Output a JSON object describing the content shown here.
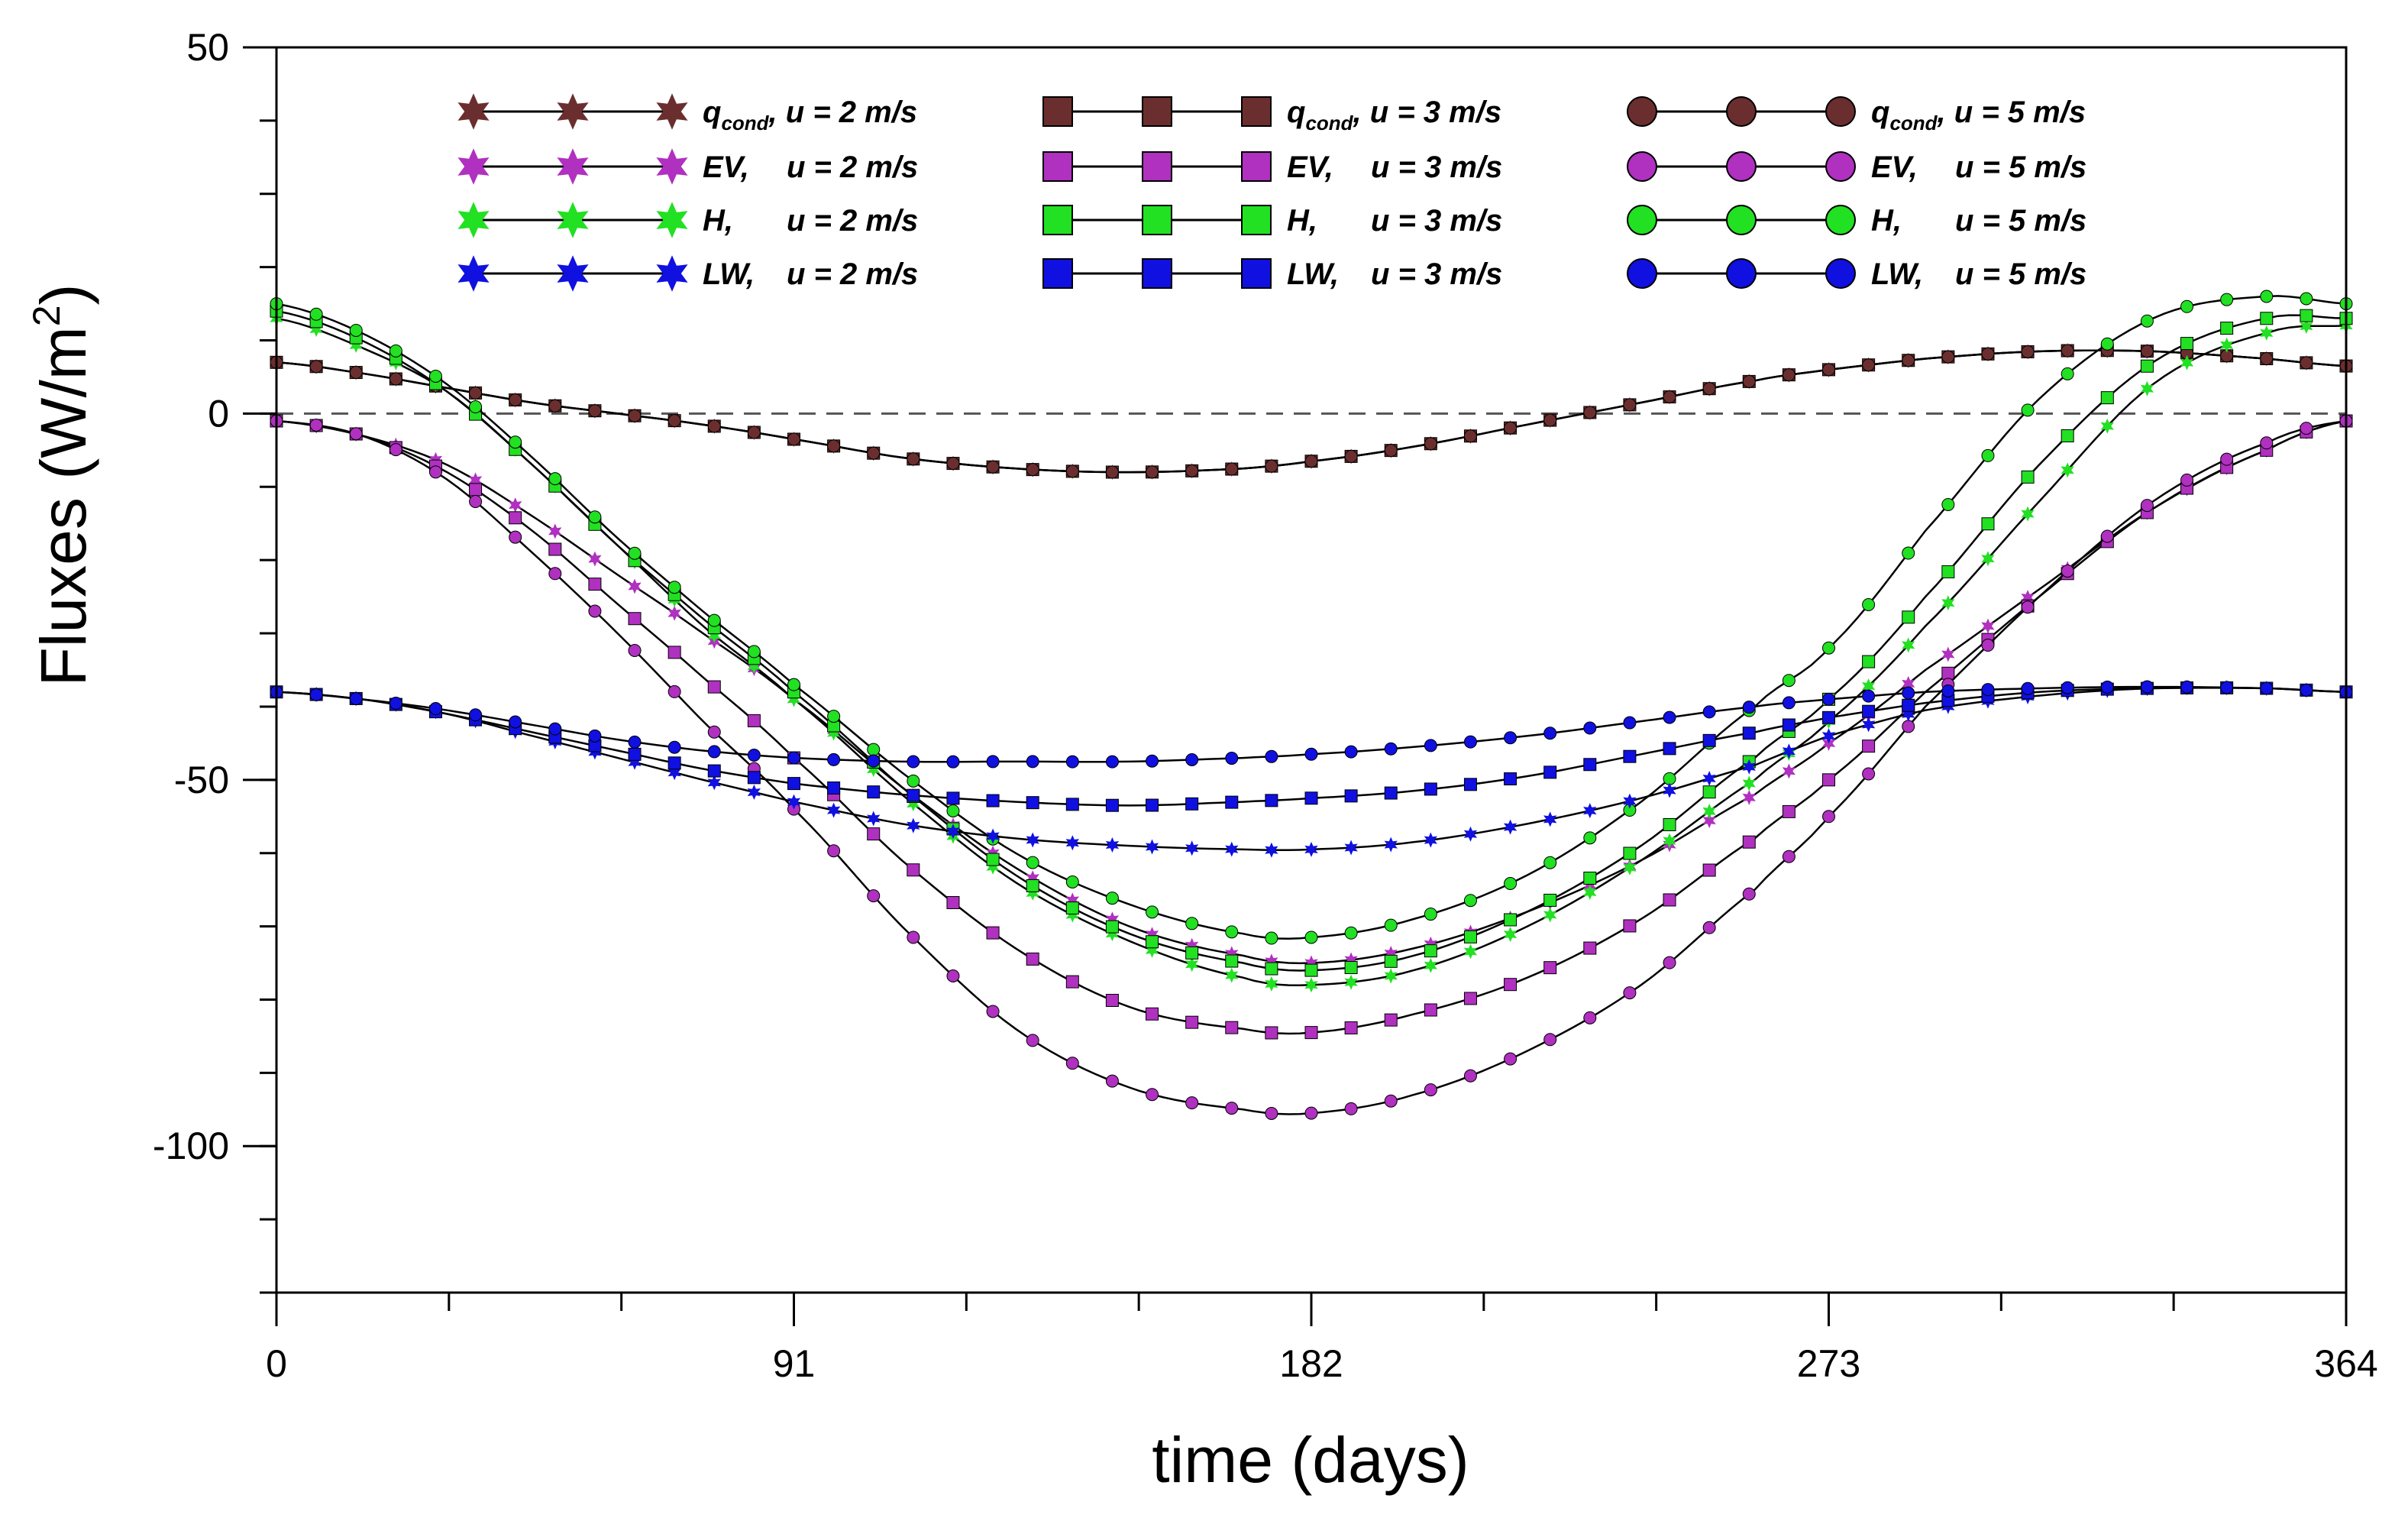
{
  "chart_data": {
    "type": "line",
    "xlabel": "time (days)",
    "ylabel": "Fluxes (W/m",
    "ylabel_sup": "2",
    "ylabel_close": ")",
    "xlim": [
      0,
      364
    ],
    "ylim": [
      -120,
      50
    ],
    "xticks": [
      0,
      91,
      182,
      273,
      364
    ],
    "xtick_labels": [
      "0",
      "91",
      "182",
      "273",
      "364"
    ],
    "x_minor_step": 30.333,
    "yticks": [
      50,
      0,
      -50,
      -100
    ],
    "ytick_labels": [
      "50",
      "0",
      "-50",
      "-100"
    ],
    "y_minor_step": 10,
    "zero_line": "dashed",
    "marker_spacing_days": 7,
    "legend_position": "top",
    "legend": [
      {
        "series": "qcond_u2",
        "text": "q",
        "sub": "cond",
        "rest": ", u = 2 m/s"
      },
      {
        "series": "qcond_u3",
        "text": "q",
        "sub": "cond",
        "rest": ", u = 3 m/s"
      },
      {
        "series": "qcond_u5",
        "text": "q",
        "sub": "cond",
        "rest": ", u = 5 m/s"
      },
      {
        "series": "EV_u2",
        "text": "EV,",
        "sub": "",
        "rest": "u = 2 m/s"
      },
      {
        "series": "EV_u3",
        "text": "EV,",
        "sub": "",
        "rest": "u = 3 m/s"
      },
      {
        "series": "EV_u5",
        "text": "EV,",
        "sub": "",
        "rest": "u = 5 m/s"
      },
      {
        "series": "H_u2",
        "text": "H,",
        "sub": "",
        "rest": "u = 2 m/s"
      },
      {
        "series": "H_u3",
        "text": "H,",
        "sub": "",
        "rest": "u = 3 m/s"
      },
      {
        "series": "H_u5",
        "text": "H,",
        "sub": "",
        "rest": "u = 5 m/s"
      },
      {
        "series": "LW_u2",
        "text": "LW,",
        "sub": "",
        "rest": "u = 2 m/s"
      },
      {
        "series": "LW_u3",
        "text": "LW,",
        "sub": "",
        "rest": "u = 3 m/s"
      },
      {
        "series": "LW_u5",
        "text": "LW,",
        "sub": "",
        "rest": "u = 5 m/s"
      }
    ],
    "series": [
      {
        "id": "qcond_u2",
        "name": "qcond, u = 2 m/s",
        "color": "#6b2e2e",
        "marker": "star",
        "x": [
          0,
          15,
          30,
          45,
          60,
          75,
          91,
          110,
          130,
          150,
          170,
          182,
          200,
          220,
          240,
          260,
          273,
          290,
          310,
          330,
          350,
          364
        ],
        "y": [
          7,
          5.5,
          3.5,
          1.5,
          0,
          -1.5,
          -3.5,
          -6,
          -7.5,
          -8,
          -7.5,
          -6.5,
          -4.5,
          -1.5,
          1.5,
          4.5,
          6,
          7.5,
          8.5,
          8.5,
          7.5,
          6.5
        ]
      },
      {
        "id": "qcond_u3",
        "name": "qcond, u = 3 m/s",
        "color": "#6b2e2e",
        "marker": "square",
        "x": [
          0,
          15,
          30,
          45,
          60,
          75,
          91,
          110,
          130,
          150,
          170,
          182,
          200,
          220,
          240,
          260,
          273,
          290,
          310,
          330,
          350,
          364
        ],
        "y": [
          7,
          5.5,
          3.5,
          1.5,
          0,
          -1.5,
          -3.5,
          -6,
          -7.5,
          -8,
          -7.5,
          -6.5,
          -4.5,
          -1.5,
          1.5,
          4.5,
          6,
          7.5,
          8.5,
          8.5,
          7.5,
          6.5
        ]
      },
      {
        "id": "qcond_u5",
        "name": "qcond, u = 5 m/s",
        "color": "#6b2e2e",
        "marker": "circle",
        "x": [
          0,
          15,
          30,
          45,
          60,
          75,
          91,
          110,
          130,
          150,
          170,
          182,
          200,
          220,
          240,
          260,
          273,
          290,
          310,
          330,
          350,
          364
        ],
        "y": [
          7,
          5.5,
          3.5,
          1.5,
          0,
          -1.5,
          -3.5,
          -6,
          -7.5,
          -8,
          -7.5,
          -6.5,
          -4.5,
          -1.5,
          1.5,
          4.5,
          6,
          7.5,
          8.5,
          8.5,
          7.5,
          6.5
        ]
      },
      {
        "id": "EV_u2",
        "name": "EV, u = 2 m/s",
        "color": "#b030c0",
        "marker": "star",
        "x": [
          0,
          15,
          30,
          45,
          60,
          75,
          91,
          110,
          130,
          150,
          170,
          182,
          200,
          220,
          240,
          260,
          273,
          290,
          310,
          330,
          350,
          364
        ],
        "y": [
          -1,
          -3,
          -7,
          -14,
          -22,
          -30,
          -39,
          -51,
          -62,
          -70,
          -74,
          -75,
          -73,
          -68,
          -61,
          -52,
          -45,
          -35,
          -24,
          -13,
          -5,
          -1
        ]
      },
      {
        "id": "EV_u3",
        "name": "EV, u = 3 m/s",
        "color": "#b030c0",
        "marker": "square",
        "x": [
          0,
          15,
          30,
          45,
          60,
          75,
          91,
          110,
          130,
          150,
          170,
          182,
          200,
          220,
          240,
          260,
          273,
          290,
          310,
          330,
          350,
          364
        ],
        "y": [
          -1,
          -3,
          -8,
          -16,
          -26,
          -36,
          -47,
          -61,
          -73,
          -81,
          -84,
          -84.5,
          -82,
          -77,
          -69,
          -58,
          -50,
          -38,
          -25,
          -13,
          -5,
          -1
        ]
      },
      {
        "id": "EV_u5",
        "name": "EV, u = 5 m/s",
        "color": "#b030c0",
        "marker": "circle",
        "x": [
          0,
          15,
          30,
          45,
          60,
          75,
          91,
          110,
          130,
          150,
          170,
          182,
          200,
          220,
          240,
          260,
          273,
          290,
          310,
          330,
          350,
          364
        ],
        "y": [
          -1,
          -3,
          -9,
          -19,
          -30,
          -42,
          -54,
          -70,
          -84,
          -92,
          -95,
          -95.5,
          -93,
          -87,
          -78,
          -65,
          -55,
          -40,
          -25,
          -12,
          -4,
          -1
        ]
      },
      {
        "id": "H_u2",
        "name": "H, u = 2 m/s",
        "color": "#22e022",
        "marker": "star",
        "x": [
          0,
          15,
          30,
          45,
          60,
          75,
          91,
          110,
          130,
          150,
          170,
          182,
          200,
          220,
          240,
          260,
          273,
          290,
          310,
          330,
          350,
          364
        ],
        "y": [
          13,
          9,
          3,
          -7,
          -18,
          -29,
          -39,
          -52,
          -64,
          -72,
          -77,
          -78,
          -76,
          -70,
          -61,
          -50,
          -42,
          -29,
          -12,
          4,
          11,
          12
        ]
      },
      {
        "id": "H_u3",
        "name": "H, u = 3 m/s",
        "color": "#22e022",
        "marker": "square",
        "x": [
          0,
          15,
          30,
          45,
          60,
          75,
          91,
          110,
          130,
          150,
          170,
          182,
          200,
          220,
          240,
          260,
          273,
          290,
          310,
          330,
          350,
          364
        ],
        "y": [
          14,
          10,
          3,
          -7,
          -18,
          -28,
          -38,
          -51,
          -63,
          -71,
          -75,
          -76,
          -74,
          -68,
          -59,
          -47,
          -39,
          -25,
          -7,
          7,
          13,
          13
        ]
      },
      {
        "id": "H_u5",
        "name": "H, u = 5 m/s",
        "color": "#22e022",
        "marker": "circle",
        "x": [
          0,
          15,
          30,
          45,
          60,
          75,
          91,
          110,
          130,
          150,
          170,
          182,
          200,
          220,
          240,
          260,
          273,
          290,
          310,
          330,
          350,
          364
        ],
        "y": [
          15,
          11,
          4,
          -6,
          -17,
          -27,
          -37,
          -49,
          -60,
          -67,
          -71,
          -71.5,
          -69,
          -63,
          -53,
          -40,
          -32,
          -16,
          2,
          13,
          16,
          15
        ]
      },
      {
        "id": "LW_u2",
        "name": "LW, u = 2 m/s",
        "color": "#1010e0",
        "marker": "star",
        "x": [
          0,
          15,
          30,
          45,
          60,
          75,
          91,
          110,
          130,
          150,
          170,
          182,
          200,
          220,
          240,
          260,
          273,
          290,
          310,
          330,
          350,
          364
        ],
        "y": [
          -38,
          -39,
          -41,
          -44,
          -47,
          -50,
          -53,
          -56,
          -58,
          -59,
          -59.5,
          -59.5,
          -58.5,
          -56,
          -52.5,
          -48,
          -44,
          -40.5,
          -38.5,
          -37.5,
          -37.5,
          -38
        ]
      },
      {
        "id": "LW_u3",
        "name": "LW, u = 3 m/s",
        "color": "#1010e0",
        "marker": "square",
        "x": [
          0,
          15,
          30,
          45,
          60,
          75,
          91,
          110,
          130,
          150,
          170,
          182,
          200,
          220,
          240,
          260,
          273,
          290,
          310,
          330,
          350,
          364
        ],
        "y": [
          -38,
          -39,
          -41,
          -43.5,
          -46,
          -48.5,
          -50.5,
          -52,
          -53,
          -53.5,
          -53,
          -52.5,
          -51.5,
          -49.5,
          -46.5,
          -43.5,
          -41.5,
          -39.5,
          -38,
          -37.5,
          -37.5,
          -38
        ]
      },
      {
        "id": "LW_u5",
        "name": "LW, u = 5 m/s",
        "color": "#1010e0",
        "marker": "circle",
        "x": [
          0,
          15,
          30,
          45,
          60,
          75,
          91,
          110,
          130,
          150,
          170,
          182,
          200,
          220,
          240,
          260,
          273,
          290,
          310,
          330,
          350,
          364
        ],
        "y": [
          -38,
          -39,
          -40.5,
          -42.5,
          -44.5,
          -46,
          -47,
          -47.5,
          -47.5,
          -47.5,
          -47,
          -46.5,
          -45.5,
          -44,
          -42,
          -40,
          -39,
          -38,
          -37.5,
          -37.3,
          -37.5,
          -38
        ]
      }
    ]
  }
}
